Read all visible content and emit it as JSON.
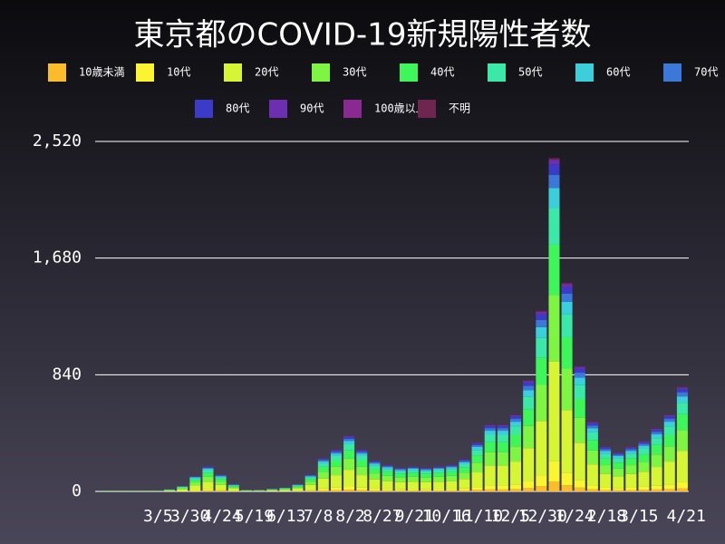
{
  "chart_data": {
    "type": "stacked_bar",
    "title": "東京都のCOVID-19新規陽性者数",
    "x": [
      0,
      10,
      20,
      30,
      40,
      50,
      60,
      70,
      80,
      90,
      100,
      110,
      120,
      130,
      140,
      150,
      160,
      170,
      180,
      190,
      200,
      210,
      220,
      230,
      240,
      250,
      260,
      270,
      280,
      290,
      300,
      310,
      320,
      330,
      340,
      350,
      360,
      370,
      380,
      390,
      400,
      410,
      420,
      430,
      440,
      450
    ],
    "xlim": [
      -8,
      455
    ],
    "xticks": [
      {
        "value": 41,
        "label": "3/5"
      },
      {
        "value": 66,
        "label": "3/30"
      },
      {
        "value": 91,
        "label": "4/24"
      },
      {
        "value": 116,
        "label": "5/19"
      },
      {
        "value": 141,
        "label": "6/13"
      },
      {
        "value": 166,
        "label": "7/8"
      },
      {
        "value": 191,
        "label": "8/2"
      },
      {
        "value": 216,
        "label": "8/27"
      },
      {
        "value": 241,
        "label": "9/21"
      },
      {
        "value": 266,
        "label": "10/16"
      },
      {
        "value": 291,
        "label": "11/10"
      },
      {
        "value": 316,
        "label": "12/5"
      },
      {
        "value": 341,
        "label": "12/30"
      },
      {
        "value": 366,
        "label": "1/24"
      },
      {
        "value": 391,
        "label": "2/18"
      },
      {
        "value": 416,
        "label": "3/15"
      },
      {
        "value": 453,
        "label": "4/21"
      }
    ],
    "ylim": [
      0,
      2520
    ],
    "yticks": [
      0,
      {
        "value": 840,
        "label": "840"
      },
      {
        "value": 1680,
        "label": "1,680"
      },
      {
        "value": 2520,
        "label": "2,520"
      }
    ],
    "grid": true,
    "series": [
      {
        "name": "10歳未満",
        "color": "#fbbc2c",
        "values": [
          0,
          0,
          0,
          0,
          0,
          0,
          1,
          3,
          5,
          4,
          2,
          0,
          0,
          1,
          1,
          2,
          4,
          7,
          9,
          12,
          9,
          7,
          6,
          5,
          5,
          5,
          5,
          6,
          7,
          11,
          14,
          14,
          17,
          24,
          39,
          72,
          45,
          27,
          15,
          10,
          8,
          10,
          11,
          14,
          17,
          23
        ]
      },
      {
        "name": "10代",
        "color": "#f9f531",
        "values": [
          0,
          0,
          0,
          0,
          0,
          1,
          2,
          7,
          11,
          7,
          3,
          1,
          1,
          1,
          2,
          3,
          7,
          14,
          18,
          24,
          18,
          13,
          11,
          10,
          11,
          10,
          11,
          11,
          14,
          21,
          29,
          29,
          33,
          48,
          78,
          144,
          90,
          54,
          30,
          19,
          17,
          19,
          22,
          27,
          33,
          45
        ]
      },
      {
        "name": "20代",
        "color": "#d6f535",
        "values": [
          2,
          2,
          2,
          2,
          2,
          5,
          12,
          33,
          54,
          36,
          15,
          3,
          3,
          6,
          8,
          15,
          36,
          72,
          90,
          120,
          90,
          66,
          57,
          51,
          54,
          51,
          54,
          57,
          69,
          105,
          144,
          144,
          165,
          240,
          390,
          720,
          450,
          270,
          150,
          96,
          84,
          96,
          108,
          135,
          165,
          225
        ]
      },
      {
        "name": "30代",
        "color": "#7ef542",
        "values": [
          1,
          1,
          1,
          1,
          1,
          3,
          8,
          22,
          36,
          24,
          10,
          2,
          2,
          4,
          5,
          10,
          24,
          48,
          60,
          80,
          60,
          44,
          38,
          34,
          36,
          34,
          36,
          38,
          46,
          70,
          96,
          96,
          110,
          160,
          260,
          480,
          300,
          180,
          100,
          64,
          56,
          64,
          72,
          90,
          110,
          150
        ]
      },
      {
        "name": "40代",
        "color": "#3ef55a",
        "values": [
          1,
          1,
          1,
          1,
          1,
          2,
          6,
          17,
          27,
          18,
          8,
          2,
          2,
          3,
          4,
          8,
          18,
          36,
          45,
          60,
          45,
          33,
          29,
          26,
          27,
          26,
          27,
          29,
          35,
          53,
          72,
          72,
          83,
          120,
          195,
          360,
          225,
          135,
          75,
          48,
          42,
          48,
          54,
          68,
          83,
          113
        ]
      },
      {
        "name": "50代",
        "color": "#3be8a8",
        "values": [
          1,
          1,
          1,
          1,
          1,
          2,
          4,
          12,
          20,
          13,
          6,
          1,
          1,
          2,
          3,
          6,
          13,
          26,
          33,
          44,
          33,
          24,
          21,
          19,
          20,
          19,
          20,
          21,
          25,
          39,
          53,
          53,
          61,
          88,
          143,
          264,
          165,
          99,
          55,
          35,
          31,
          35,
          40,
          50,
          61,
          83
        ]
      },
      {
        "name": "60代",
        "color": "#3bcfdc",
        "values": [
          0,
          0,
          0,
          0,
          0,
          1,
          2,
          7,
          11,
          7,
          3,
          1,
          1,
          1,
          2,
          3,
          7,
          14,
          18,
          24,
          18,
          13,
          11,
          10,
          11,
          10,
          11,
          11,
          14,
          21,
          29,
          29,
          33,
          48,
          78,
          144,
          90,
          54,
          30,
          19,
          17,
          19,
          22,
          27,
          33,
          45
        ]
      },
      {
        "name": "70代",
        "color": "#3b78d8",
        "values": [
          0,
          0,
          0,
          0,
          0,
          1,
          2,
          4,
          7,
          5,
          2,
          0,
          0,
          1,
          1,
          2,
          5,
          10,
          12,
          16,
          12,
          9,
          8,
          7,
          7,
          7,
          7,
          8,
          9,
          14,
          19,
          19,
          22,
          32,
          52,
          96,
          60,
          36,
          20,
          13,
          11,
          13,
          14,
          18,
          22,
          30
        ]
      },
      {
        "name": "80代",
        "color": "#3b3bc8",
        "values": [
          0,
          0,
          0,
          0,
          0,
          0,
          1,
          3,
          5,
          4,
          2,
          0,
          0,
          1,
          1,
          2,
          4,
          7,
          9,
          12,
          9,
          7,
          6,
          5,
          5,
          5,
          5,
          6,
          7,
          11,
          14,
          14,
          17,
          24,
          39,
          72,
          45,
          27,
          15,
          10,
          8,
          10,
          11,
          14,
          17,
          23
        ]
      },
      {
        "name": "90代",
        "color": "#6d2eb0",
        "values": [
          0,
          0,
          0,
          0,
          0,
          0,
          1,
          2,
          3,
          2,
          1,
          0,
          0,
          0,
          0,
          1,
          2,
          4,
          5,
          6,
          5,
          3,
          3,
          3,
          3,
          3,
          3,
          3,
          3,
          5,
          7,
          7,
          8,
          12,
          20,
          36,
          23,
          14,
          8,
          5,
          4,
          5,
          5,
          7,
          8,
          11
        ]
      },
      {
        "name": "100歳以上",
        "color": "#8a2a90",
        "values": [
          0,
          0,
          0,
          0,
          0,
          0,
          0,
          0,
          0,
          0,
          0,
          0,
          0,
          0,
          0,
          0,
          0,
          0,
          0,
          0,
          0,
          0,
          0,
          0,
          0,
          0,
          0,
          0,
          0,
          0,
          0,
          0,
          0,
          0,
          0,
          0,
          0,
          0,
          0,
          0,
          0,
          0,
          0,
          0,
          0,
          0
        ]
      },
      {
        "name": "不明",
        "color": "#6e2550",
        "values": [
          0,
          0,
          0,
          0,
          0,
          0,
          0,
          1,
          1,
          1,
          0,
          0,
          0,
          0,
          0,
          0,
          1,
          1,
          2,
          2,
          2,
          1,
          1,
          1,
          1,
          1,
          1,
          1,
          1,
          2,
          2,
          2,
          3,
          4,
          7,
          12,
          8,
          5,
          3,
          2,
          1,
          2,
          2,
          2,
          3,
          4
        ]
      }
    ]
  }
}
